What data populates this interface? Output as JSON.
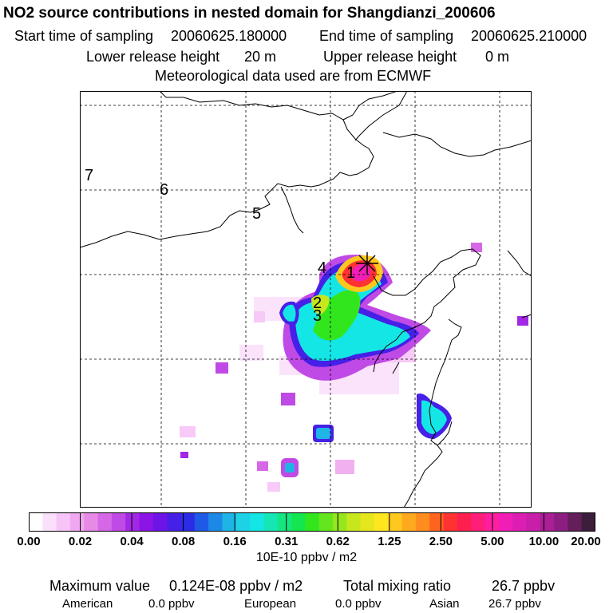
{
  "header": {
    "title": "NO2 source contributions in nested domain for Shangdianzi_200606",
    "start_label": "Start time of sampling",
    "start_value": "20060625.180000",
    "end_label": "End time of sampling",
    "end_value": "20060625.210000",
    "lower_label": "Lower release height",
    "lower_value": "20 m",
    "upper_label": "Upper release height",
    "upper_value": "0 m",
    "met_text": "Meteorological data used are from ECMWF"
  },
  "map": {
    "region_labels": [
      "7",
      "6",
      "5",
      "4",
      "1",
      "2",
      "3"
    ],
    "station_marker": "plus-marker",
    "colors": {
      "coast": "#000000",
      "grid": "#000000",
      "frame": "#000000"
    }
  },
  "colorbar": {
    "colors": [
      "#ffffff",
      "#fbe0fb",
      "#f6c4f6",
      "#f0a8f0",
      "#e68ae6",
      "#d667e6",
      "#c04ae6",
      "#a228e6",
      "#8c14e6",
      "#6e14e6",
      "#4620e6",
      "#2c2ce6",
      "#1e5ae6",
      "#1e88e6",
      "#1eb4e6",
      "#1ed2e6",
      "#14e6e6",
      "#14e6b4",
      "#14e682",
      "#14e650",
      "#32e61e",
      "#64e61e",
      "#96e61e",
      "#c8e61e",
      "#e6e61e",
      "#ffe61e",
      "#ffc81e",
      "#ffaa1e",
      "#ff8c1e",
      "#ff641e",
      "#ff3232",
      "#ff1e50",
      "#ff1e78",
      "#ff1ea0",
      "#f01eb4",
      "#dc1eb4",
      "#c81eaa",
      "#aa1e96",
      "#8c1e82",
      "#641e5a",
      "#3c1e3c"
    ],
    "tick_labels": [
      "0.00",
      "0.02",
      "0.04",
      "0.08",
      "0.16",
      "0.31",
      "0.62",
      "1.25",
      "2.50",
      "5.00",
      "10.00",
      "20.00"
    ],
    "units": "10E-10 ppbv / m2"
  },
  "footer": {
    "max_label": "Maximum value",
    "max_value": "0.124E-08 ppbv / m2",
    "total_label": "Total mixing ratio",
    "total_value": "26.7 ppbv",
    "american_label": "American",
    "american_value": "0.0 ppbv",
    "european_label": "European",
    "european_value": "0.0 ppbv",
    "asian_label": "Asian",
    "asian_value": "26.7 ppbv"
  }
}
